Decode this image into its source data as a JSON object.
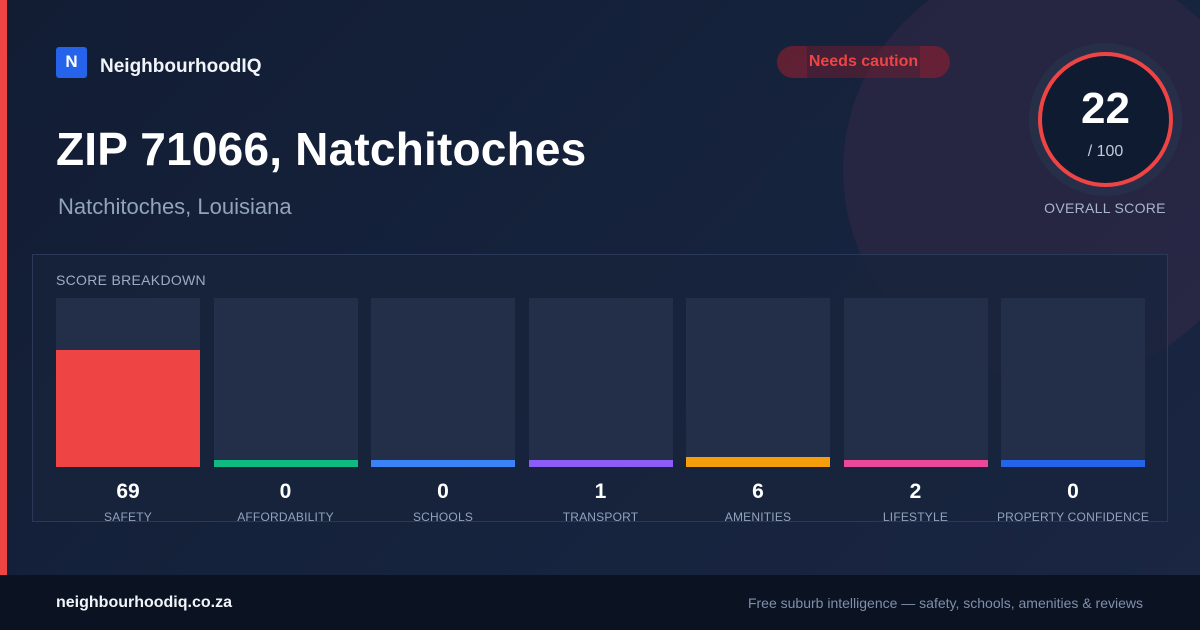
{
  "brand": {
    "logo_letter": "N",
    "name": "NeighbourhoodIQ"
  },
  "badge": {
    "label": "Needs caution",
    "color": "#ef4444"
  },
  "location": {
    "title": "ZIP 71066, Natchitoches",
    "subtitle": "Natchitoches, Louisiana"
  },
  "overall": {
    "score": "22",
    "out_of": "/ 100",
    "label": "OVERALL SCORE",
    "color": "#ef4444"
  },
  "breakdown": {
    "title": "SCORE BREAKDOWN",
    "max": 100,
    "items": [
      {
        "label": "SAFETY",
        "value": 69,
        "color": "#ef4444"
      },
      {
        "label": "AFFORDABILITY",
        "value": 0,
        "color": "#10b981"
      },
      {
        "label": "SCHOOLS",
        "value": 0,
        "color": "#3b82f6"
      },
      {
        "label": "TRANSPORT",
        "value": 1,
        "color": "#8b5cf6"
      },
      {
        "label": "AMENITIES",
        "value": 6,
        "color": "#f59e0b"
      },
      {
        "label": "LIFESTYLE",
        "value": 2,
        "color": "#ec4899"
      },
      {
        "label": "PROPERTY CONFIDENCE",
        "value": 0,
        "color": "#2563eb"
      }
    ]
  },
  "footer": {
    "site": "neighbourhoodiq.co.za",
    "tagline": "Free suburb intelligence — safety, schools, amenities & reviews"
  }
}
